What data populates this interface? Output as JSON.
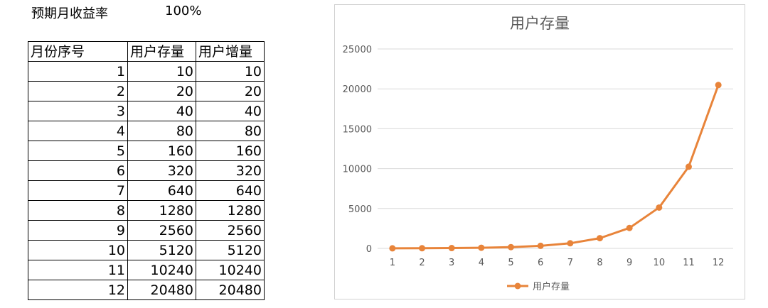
{
  "params": {
    "label": "预期月收益率",
    "value": "100%"
  },
  "table": {
    "headers": [
      "月份序号",
      "用户存量",
      "用户增量"
    ],
    "rows": [
      [
        "1",
        "10",
        "10"
      ],
      [
        "2",
        "20",
        "20"
      ],
      [
        "3",
        "40",
        "40"
      ],
      [
        "4",
        "80",
        "80"
      ],
      [
        "5",
        "160",
        "160"
      ],
      [
        "6",
        "320",
        "320"
      ],
      [
        "7",
        "640",
        "640"
      ],
      [
        "8",
        "1280",
        "1280"
      ],
      [
        "9",
        "2560",
        "2560"
      ],
      [
        "10",
        "5120",
        "5120"
      ],
      [
        "11",
        "10240",
        "10240"
      ],
      [
        "12",
        "20480",
        "20480"
      ]
    ]
  },
  "chart_data": {
    "type": "line",
    "title": "用户存量",
    "categories": [
      "1",
      "2",
      "3",
      "4",
      "5",
      "6",
      "7",
      "8",
      "9",
      "10",
      "11",
      "12"
    ],
    "series": [
      {
        "name": "用户存量",
        "color": "#E8843A",
        "values": [
          10,
          20,
          40,
          80,
          160,
          320,
          640,
          1280,
          2560,
          5120,
          10240,
          20480
        ]
      }
    ],
    "ylim": [
      0,
      25000
    ],
    "yticks": [
      0,
      5000,
      10000,
      15000,
      20000,
      25000
    ],
    "grid": true,
    "legend": "bottom",
    "xlabel": "",
    "ylabel": ""
  }
}
